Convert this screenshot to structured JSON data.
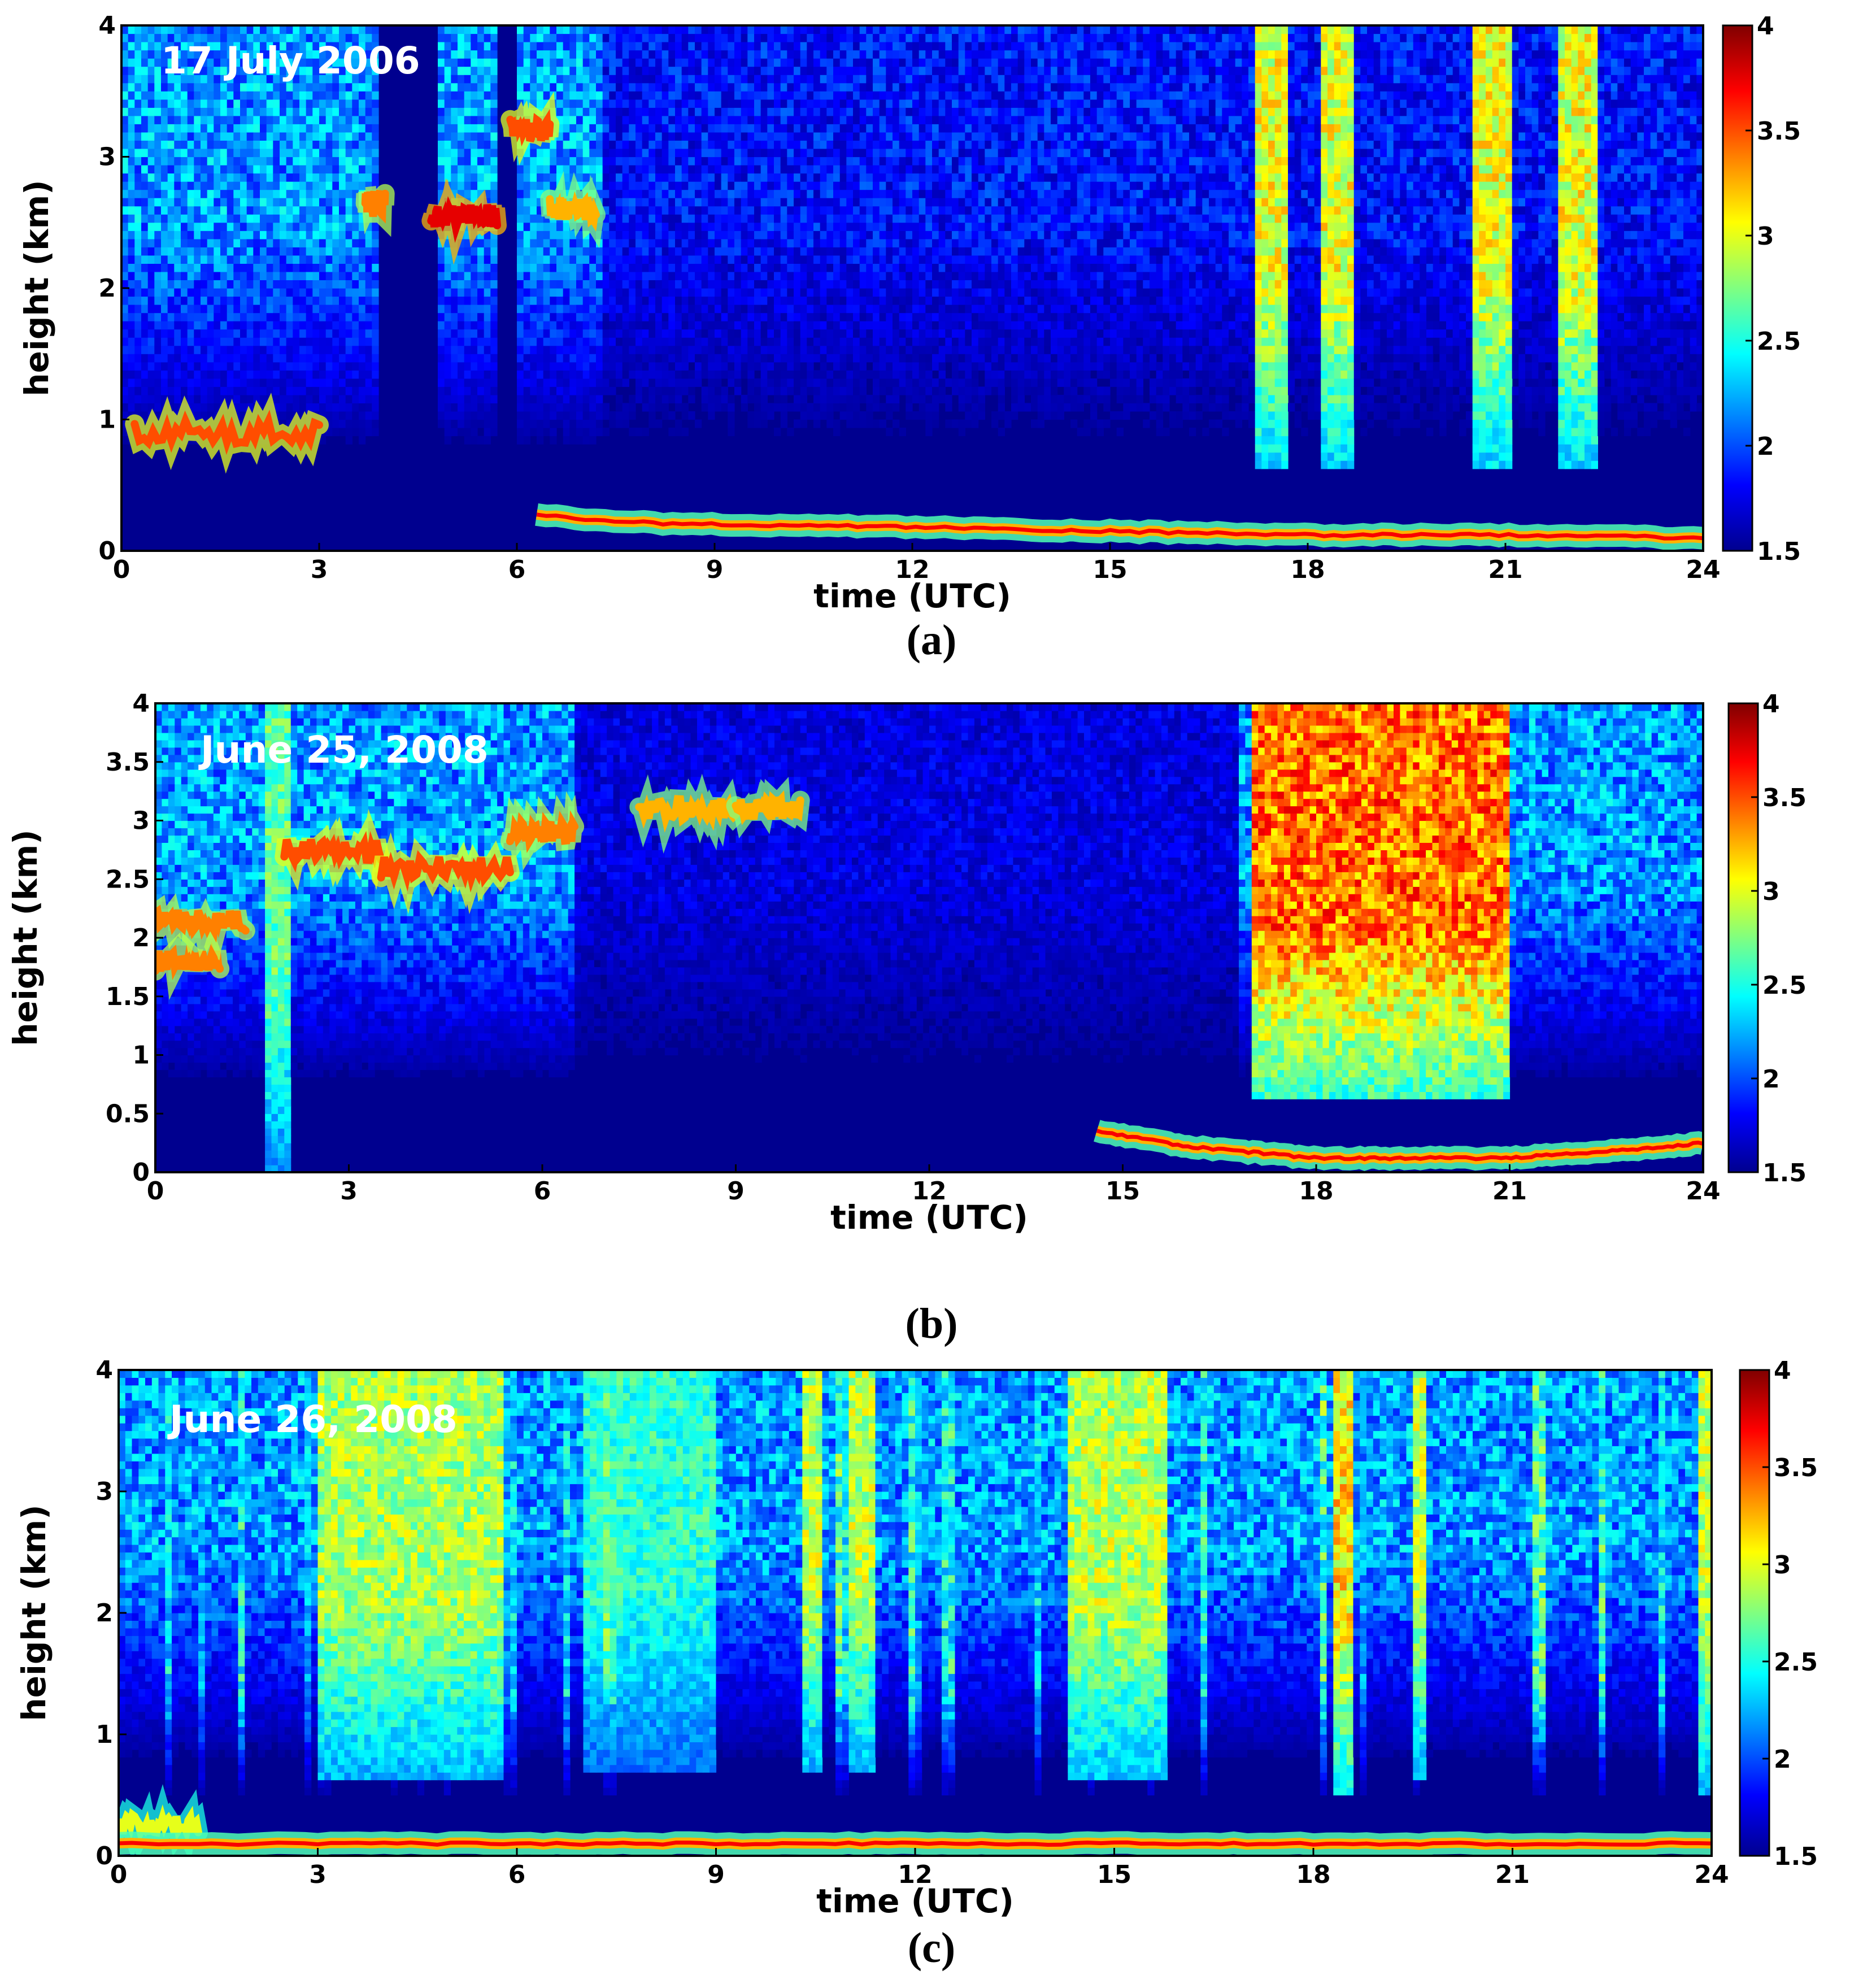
{
  "colors": {
    "background_blue": "#00008f",
    "noise_blue": "#0a3cd6",
    "colormap": [
      "#00008f",
      "#0000ff",
      "#0080ff",
      "#00ffff",
      "#80ff80",
      "#ffff00",
      "#ff8000",
      "#ff0000",
      "#800000"
    ]
  },
  "chart_data": [
    {
      "type": "heatmap",
      "panel_caption": "(a)",
      "date_label": "17 July 2006",
      "xlabel": "time (UTC)",
      "ylabel": "height (km)",
      "xlim": [
        0,
        24
      ],
      "ylim": [
        0,
        4
      ],
      "x_ticks": [
        "0",
        "3",
        "6",
        "9",
        "12",
        "15",
        "18",
        "21",
        "24"
      ],
      "y_ticks": [
        "0",
        "1",
        "2",
        "3",
        "4"
      ],
      "colorbar": {
        "range": [
          1.5,
          4
        ],
        "ticks": [
          "1.5",
          "2",
          "2.5",
          "3",
          "3.5",
          "4"
        ]
      },
      "features": {
        "boundary_layer": [
          [
            6.3,
            0.28
          ],
          [
            7.5,
            0.22
          ],
          [
            9,
            0.2
          ],
          [
            12,
            0.18
          ],
          [
            15,
            0.15
          ],
          [
            18,
            0.12
          ],
          [
            21,
            0.12
          ],
          [
            24,
            0.1
          ]
        ],
        "elevated_layers": [
          {
            "from": 0.2,
            "to": 3.0,
            "height": 0.9,
            "strength": 0.8
          },
          {
            "from": 3.7,
            "to": 4.0,
            "height": 2.65,
            "strength": 0.75
          },
          {
            "from": 4.7,
            "to": 5.7,
            "height": 2.55,
            "strength": 0.9
          },
          {
            "from": 5.9,
            "to": 6.5,
            "height": 3.2,
            "strength": 0.8
          },
          {
            "from": 6.5,
            "to": 7.2,
            "height": 2.6,
            "strength": 0.7
          }
        ],
        "clear_gaps": [
          [
            3.9,
            4.8
          ],
          [
            5.7,
            6.0
          ]
        ],
        "vertical_bands": [
          {
            "from": 17.2,
            "to": 17.7,
            "bottom": 0.6,
            "strength": 0.65
          },
          {
            "from": 18.2,
            "to": 18.7,
            "bottom": 0.6,
            "strength": 0.65
          },
          {
            "from": 20.5,
            "to": 21.1,
            "bottom": 0.6,
            "strength": 0.65
          },
          {
            "from": 21.8,
            "to": 22.4,
            "bottom": 0.6,
            "strength": 0.65
          }
        ],
        "quiet_intervals": [
          [
            7.3,
            24
          ]
        ]
      }
    },
    {
      "type": "heatmap",
      "panel_caption": "(b)",
      "date_label": "June 25, 2008",
      "xlabel": "time (UTC)",
      "ylabel": "height (km)",
      "xlim": [
        0,
        24
      ],
      "ylim": [
        0,
        4
      ],
      "x_ticks": [
        "0",
        "3",
        "6",
        "9",
        "12",
        "15",
        "18",
        "21",
        "24"
      ],
      "y_ticks": [
        "0",
        "0.5",
        "1",
        "1.5",
        "2",
        "2.5",
        "3",
        "3.5",
        "4"
      ],
      "colorbar": {
        "range": [
          1.5,
          4
        ],
        "ticks": [
          "1.5",
          "2",
          "2.5",
          "3",
          "3.5",
          "4"
        ]
      },
      "features": {
        "boundary_layer": [
          [
            14.6,
            0.35
          ],
          [
            16,
            0.22
          ],
          [
            18,
            0.12
          ],
          [
            21,
            0.12
          ],
          [
            23,
            0.2
          ],
          [
            24,
            0.25
          ]
        ],
        "elevated_layers": [
          {
            "from": 0.0,
            "to": 1.0,
            "height": 1.8,
            "strength": 0.75
          },
          {
            "from": 0.0,
            "to": 1.4,
            "height": 2.15,
            "strength": 0.75
          },
          {
            "from": 2.0,
            "to": 3.5,
            "height": 2.75,
            "strength": 0.8
          },
          {
            "from": 3.5,
            "to": 5.5,
            "height": 2.6,
            "strength": 0.8
          },
          {
            "from": 5.5,
            "to": 6.5,
            "height": 2.9,
            "strength": 0.75
          },
          {
            "from": 7.5,
            "to": 9.0,
            "height": 3.1,
            "strength": 0.7
          },
          {
            "from": 9.0,
            "to": 10.0,
            "height": 3.1,
            "strength": 0.7
          }
        ],
        "vertical_bands": [
          {
            "from": 1.7,
            "to": 2.1,
            "bottom": 0.0,
            "strength": 0.5
          },
          {
            "from": 17.0,
            "to": 21.0,
            "bottom": 0.6,
            "strength": 0.82
          }
        ],
        "quiet_intervals": [
          [
            6.5,
            16.8
          ]
        ]
      }
    },
    {
      "type": "heatmap",
      "panel_caption": "(c)",
      "date_label": "June 26, 2008",
      "xlabel": "time (UTC)",
      "ylabel": "height (km)",
      "xlim": [
        0,
        24
      ],
      "ylim": [
        0,
        4
      ],
      "x_ticks": [
        "0",
        "3",
        "6",
        "9",
        "12",
        "15",
        "18",
        "21",
        "24"
      ],
      "y_ticks": [
        "0",
        "1",
        "2",
        "3",
        "4"
      ],
      "colorbar": {
        "range": [
          1.5,
          4
        ],
        "ticks": [
          "1.5",
          "2",
          "2.5",
          "3",
          "3.5",
          "4"
        ]
      },
      "features": {
        "boundary_layer": [
          [
            0,
            0.1
          ],
          [
            6,
            0.1
          ],
          [
            12,
            0.1
          ],
          [
            18,
            0.1
          ],
          [
            24,
            0.1
          ]
        ],
        "elevated_layers": [
          {
            "from": 0.0,
            "to": 1.2,
            "height": 0.25,
            "strength": 0.6
          }
        ],
        "vertical_bands": [
          {
            "from": 3.0,
            "to": 5.8,
            "bottom": 0.6,
            "strength": 0.58
          },
          {
            "from": 7.0,
            "to": 9.0,
            "bottom": 0.7,
            "strength": 0.45
          },
          {
            "from": 10.3,
            "to": 10.6,
            "bottom": 0.7,
            "strength": 0.6
          },
          {
            "from": 11.0,
            "to": 11.4,
            "bottom": 0.7,
            "strength": 0.6
          },
          {
            "from": 14.3,
            "to": 15.8,
            "bottom": 0.6,
            "strength": 0.6
          },
          {
            "from": 18.3,
            "to": 18.6,
            "bottom": 0.5,
            "strength": 0.7
          },
          {
            "from": 19.5,
            "to": 19.7,
            "bottom": 0.6,
            "strength": 0.6
          },
          {
            "from": 23.8,
            "to": 24.0,
            "bottom": 0.5,
            "strength": 0.6
          }
        ],
        "streaks": "many"
      }
    }
  ]
}
